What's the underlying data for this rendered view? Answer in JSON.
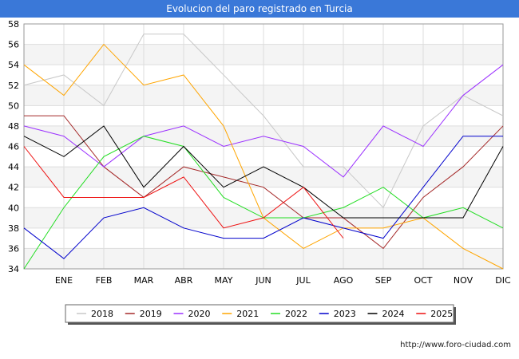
{
  "page": {
    "title": "Evolucion del paro registrado en Turcia",
    "footer": "http://www.foro-ciudad.com"
  },
  "chart_data": {
    "type": "line",
    "title": "Evolucion del paro registrado en Turcia",
    "categories": [
      "",
      "ENE",
      "FEB",
      "MAR",
      "ABR",
      "MAY",
      "JUN",
      "JUL",
      "AGO",
      "SEP",
      "OCT",
      "NOV",
      "DIC"
    ],
    "ylim": [
      34,
      58
    ],
    "yticks": [
      34,
      36,
      38,
      40,
      42,
      44,
      46,
      48,
      50,
      52,
      54,
      56,
      58
    ],
    "grid": true,
    "legend_position": "bottom",
    "series": [
      {
        "name": "2018",
        "color": "#c8c8c8",
        "values": [
          52,
          53,
          50,
          57,
          57,
          53,
          49,
          44,
          44,
          40,
          48,
          51,
          49
        ]
      },
      {
        "name": "2019",
        "color": "#a52a2a",
        "values": [
          49,
          49,
          44,
          41,
          44,
          43,
          42,
          39,
          39,
          36,
          41,
          44,
          48
        ]
      },
      {
        "name": "2020",
        "color": "#9b30ff",
        "values": [
          48,
          47,
          44,
          47,
          48,
          46,
          47,
          46,
          43,
          48,
          46,
          51,
          54
        ]
      },
      {
        "name": "2021",
        "color": "#ffa500",
        "values": [
          54,
          51,
          56,
          52,
          53,
          48,
          39,
          36,
          38,
          38,
          39,
          36,
          34
        ]
      },
      {
        "name": "2022",
        "color": "#22dd22",
        "values": [
          34,
          40,
          45,
          47,
          46,
          41,
          39,
          39,
          40,
          42,
          39,
          40,
          38
        ]
      },
      {
        "name": "2023",
        "color": "#0000cc",
        "values": [
          38,
          35,
          39,
          40,
          38,
          37,
          37,
          39,
          38,
          37,
          42,
          47,
          47
        ]
      },
      {
        "name": "2024",
        "color": "#000000",
        "values": [
          47,
          45,
          48,
          42,
          46,
          42,
          44,
          42,
          39,
          39,
          39,
          39,
          46
        ]
      },
      {
        "name": "2025",
        "color": "#ee1111",
        "values": [
          46,
          41,
          41,
          41,
          43,
          38,
          39,
          42,
          37,
          null,
          null,
          null,
          null
        ]
      }
    ]
  }
}
